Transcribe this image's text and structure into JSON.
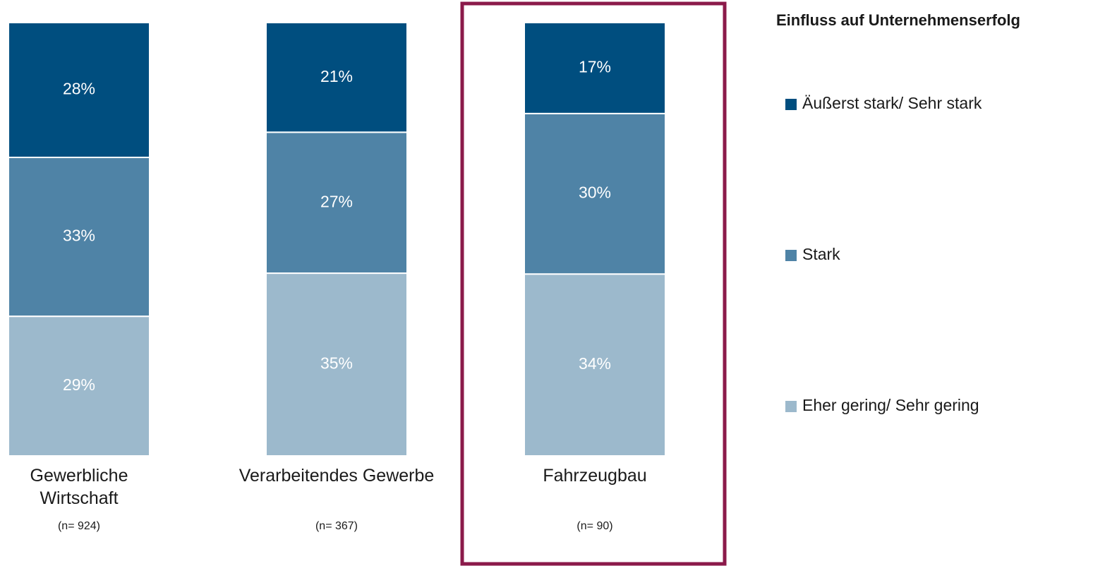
{
  "chart_data": {
    "type": "stacked_bar",
    "legend_title": "Einfluss auf Unternehmenserfolg",
    "categories": [
      "Gewerbliche Wirtschaft",
      "Verarbeitendes Gewerbe",
      "Fahrzeugbau"
    ],
    "sample_sizes": [
      "(n= 924)",
      "(n= 367)",
      "(n= 90)"
    ],
    "series": [
      {
        "name": "Äußerst stark/ Sehr stark",
        "color": "#004e7f",
        "values": [
          28,
          21,
          17
        ],
        "value_labels": [
          "28%",
          "21%",
          "17%"
        ]
      },
      {
        "name": "Stark",
        "color": "#4f83a6",
        "values": [
          33,
          27,
          30
        ],
        "value_labels": [
          "33%",
          "27%",
          "30%"
        ]
      },
      {
        "name": "Eher gering/ Sehr gering",
        "color": "#9cb9cc",
        "values": [
          29,
          35,
          34
        ],
        "value_labels": [
          "29%",
          "35%",
          "34%"
        ]
      }
    ],
    "legend": "right"
  }
}
